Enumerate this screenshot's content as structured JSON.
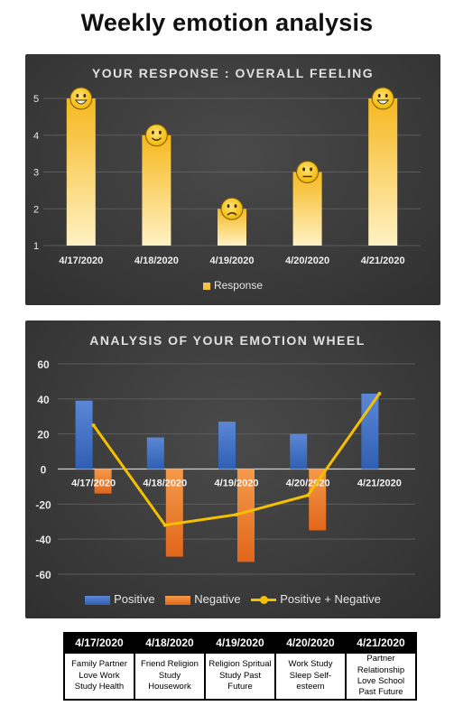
{
  "page": {
    "title": "Weekly emotion analysis"
  },
  "colors": {
    "response_bar": "#f5c242",
    "positive": "#4472c4",
    "negative": "#ed7d31",
    "net_line": "#f5c000"
  },
  "chart_data": [
    {
      "type": "bar",
      "title": "YOUR RESPONSE : OVERALL FEELING",
      "categories": [
        "4/17/2020",
        "4/18/2020",
        "4/19/2020",
        "4/20/2020",
        "4/21/2020"
      ],
      "series": [
        {
          "name": "Response",
          "values": [
            5,
            4,
            2,
            3,
            5
          ]
        }
      ],
      "bar_icons": [
        "grinning-face-icon",
        "smiling-face-icon",
        "frowning-face-icon",
        "neutral-face-icon",
        "grinning-face-icon"
      ],
      "ylim": [
        1,
        5
      ],
      "yticks": [
        1,
        2,
        3,
        4,
        5
      ],
      "grid": true,
      "legend": "bottom"
    },
    {
      "type": "bar",
      "title": "ANALYSIS OF YOUR EMOTION WHEEL",
      "categories": [
        "4/17/2020",
        "4/18/2020",
        "4/19/2020",
        "4/20/2020",
        "4/21/2020"
      ],
      "series": [
        {
          "name": "Positive",
          "type": "bar",
          "values": [
            39,
            18,
            27,
            20,
            43
          ]
        },
        {
          "name": "Negative",
          "type": "bar",
          "values": [
            -14,
            -50,
            -53,
            -35,
            0
          ]
        },
        {
          "name": "Positive + Negative",
          "type": "line",
          "values": [
            25,
            -32,
            -26,
            -15,
            43
          ]
        }
      ],
      "ylim": [
        -60,
        60
      ],
      "yticks": [
        -60,
        -40,
        -20,
        0,
        20,
        40,
        60
      ],
      "grid": true,
      "legend": "bottom"
    }
  ],
  "emotion_table": {
    "headers": [
      "4/17/2020",
      "4/18/2020",
      "4/19/2020",
      "4/20/2020",
      "4/21/2020"
    ],
    "cells": [
      "Family Partner Love Work Study Health",
      "Friend Religion Study Housework",
      "Religion Spritual Study Past Future",
      "Work Study Sleep Self-esteem",
      "Partner Relationship Love School Past Future"
    ]
  }
}
